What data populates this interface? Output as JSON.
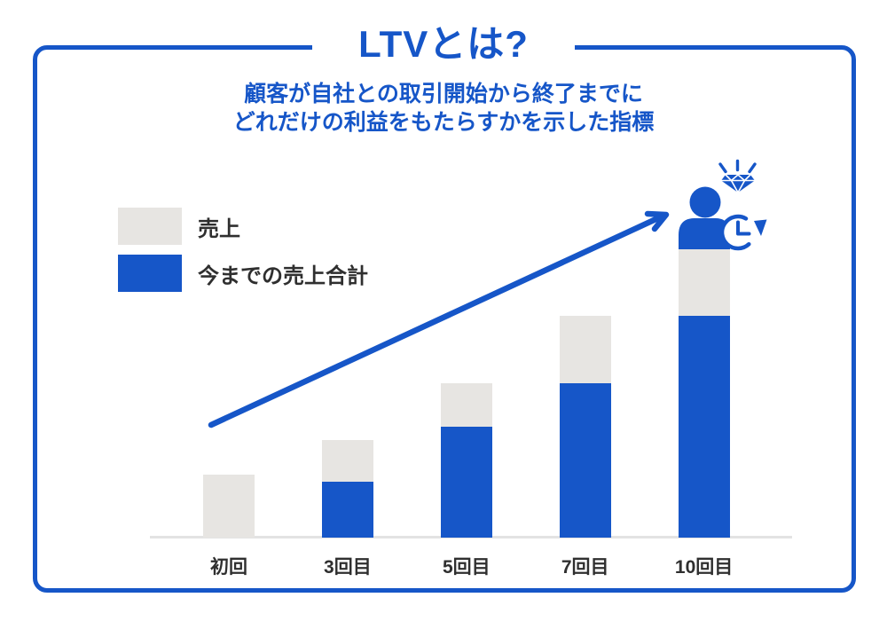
{
  "page": {
    "title": "LTVとは?",
    "subtitle_lines": [
      "顧客が自社との取引開始から終了までに",
      "どれだけの利益をもたらすかを示した指標"
    ]
  },
  "legend": {
    "items": [
      {
        "label": "売上",
        "color": "#E7E5E2"
      },
      {
        "label": "今までの売上合計",
        "color": "#1656C8"
      }
    ]
  },
  "colors": {
    "blue": "#1656C8",
    "bar_gray": "#E7E5E2",
    "label_text": "#2F2F2F",
    "axis_line": "#E3E3E3",
    "background": "#FFFFFF"
  },
  "icons": {
    "person": "person-icon (blue head and shoulders on top of tallest bar)",
    "diamond_sparkle": "diamond-sparkle-icon (gem with light rays)",
    "clock_history": "clock-history-icon (clock with circular arrow)",
    "growth_arrow": "growth-arrow-icon (diagonal arrow pointing up-right to person)"
  },
  "chart_data": {
    "type": "bar",
    "stacked": true,
    "categories": [
      "初回",
      "3回目",
      "5回目",
      "7回目",
      "10回目"
    ],
    "series": [
      {
        "name": "今までの売上合計",
        "color": "#1656C8",
        "values": [
          0,
          63,
          125,
          174,
          250
        ]
      },
      {
        "name": "売上",
        "color": "#E7E5E2",
        "values": [
          71,
          47,
          49,
          76,
          76
        ]
      }
    ],
    "value_unit": "relative height (no numeric axis shown in image)",
    "xlabel": "",
    "ylabel": "",
    "numeric_axis_shown": false,
    "legend_position": "upper-left",
    "annotations": [
      "blue diagonal growth arrow from above first bar to customer icon on tallest bar",
      "customer icon with diamond sparkle and clock icons sits on top of the 10回目 bar"
    ]
  }
}
